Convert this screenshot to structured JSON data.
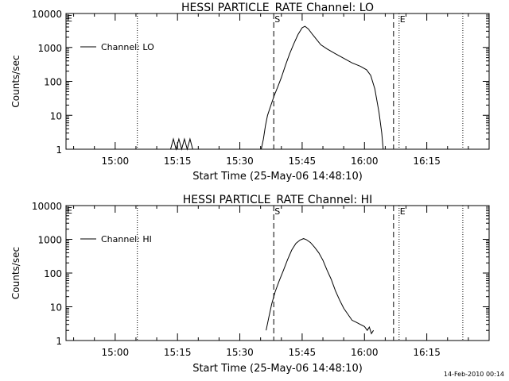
{
  "chart_data": [
    {
      "type": "line",
      "title": "HESSI PARTICLE_RATE Channel: LO",
      "xlabel": "Start Time (25-May-06 14:48:10)",
      "ylabel": "Counts/sec",
      "xlim": [
        "14:48:10",
        "16:30:00"
      ],
      "ylim": [
        1,
        10000
      ],
      "y_scale": "log",
      "x_ticks": [
        "15:00",
        "15:15",
        "15:30",
        "15:45",
        "16:00",
        "16:15"
      ],
      "y_ticks": [
        "1",
        "10",
        "100",
        "1000",
        "10000"
      ],
      "legend": {
        "position": "top-left",
        "entries": [
          "Channel: LO"
        ]
      },
      "vlines": [
        {
          "x": "15:05:20",
          "style": "dotted",
          "label": ""
        },
        {
          "x": "15:38:10",
          "style": "dashed",
          "label": "S"
        },
        {
          "x": "16:07:00",
          "style": "dashed",
          "label": ""
        },
        {
          "x": "16:08:20",
          "style": "dotted",
          "label": "E"
        },
        {
          "x": "16:23:40",
          "style": "dotted",
          "label": ""
        }
      ],
      "corner_mark": "E",
      "series": [
        {
          "name": "Channel: LO",
          "x": [
            "15:13:20",
            "15:14:00",
            "15:14:40",
            "15:15:20",
            "15:16:00",
            "15:16:40",
            "15:17:20",
            "15:18:00",
            "15:18:40",
            "15:35:10",
            "15:35:40",
            "15:36:10",
            "15:36:40",
            "15:37:30",
            "15:38:20",
            "15:39:10",
            "15:40:00",
            "15:41:00",
            "15:42:00",
            "15:43:00",
            "15:44:00",
            "15:45:00",
            "15:45:40",
            "15:46:30",
            "15:47:30",
            "15:48:30",
            "15:49:30",
            "15:51:00",
            "15:53:00",
            "15:55:00",
            "15:57:00",
            "15:59:00",
            "16:00:30",
            "16:01:30",
            "16:02:30",
            "16:03:30",
            "16:04:10",
            "16:04:30"
          ],
          "y": [
            1,
            2,
            1,
            2,
            1,
            2,
            1,
            2,
            1,
            1,
            2,
            5,
            10,
            20,
            40,
            70,
            130,
            300,
            650,
            1300,
            2400,
            3800,
            4200,
            3500,
            2400,
            1700,
            1200,
            900,
            650,
            480,
            350,
            280,
            220,
            150,
            60,
            12,
            3,
            1
          ]
        }
      ]
    },
    {
      "type": "line",
      "title": "HESSI PARTICLE_RATE Channel: HI",
      "xlabel": "Start Time (25-May-06 14:48:10)",
      "ylabel": "Counts/sec",
      "xlim": [
        "14:48:10",
        "16:30:00"
      ],
      "ylim": [
        1,
        10000
      ],
      "y_scale": "log",
      "x_ticks": [
        "15:00",
        "15:15",
        "15:30",
        "15:45",
        "16:00",
        "16:15"
      ],
      "y_ticks": [
        "1",
        "10",
        "100",
        "1000",
        "10000"
      ],
      "legend": {
        "position": "top-left",
        "entries": [
          "Channel: HI"
        ]
      },
      "vlines": [
        {
          "x": "15:05:20",
          "style": "dotted",
          "label": ""
        },
        {
          "x": "15:38:10",
          "style": "dashed",
          "label": "S"
        },
        {
          "x": "16:07:00",
          "style": "dashed",
          "label": ""
        },
        {
          "x": "16:08:20",
          "style": "dotted",
          "label": "E"
        },
        {
          "x": "16:23:40",
          "style": "dotted",
          "label": ""
        }
      ],
      "corner_mark": "E",
      "series": [
        {
          "name": "Channel: HI",
          "x": [
            "15:36:20",
            "15:37:00",
            "15:37:40",
            "15:38:30",
            "15:39:30",
            "15:40:30",
            "15:41:30",
            "15:42:30",
            "15:43:30",
            "15:44:30",
            "15:45:20",
            "15:46:00",
            "15:47:00",
            "15:48:00",
            "15:49:00",
            "15:50:00",
            "15:51:00",
            "15:52:00",
            "15:53:00",
            "15:54:00",
            "15:55:00",
            "15:56:00",
            "15:57:00",
            "15:58:00",
            "15:59:00",
            "16:00:00",
            "16:00:40",
            "16:01:10",
            "16:01:40",
            "16:02:10"
          ],
          "y": [
            2,
            5,
            12,
            28,
            60,
            120,
            250,
            480,
            760,
            950,
            1050,
            980,
            800,
            580,
            400,
            240,
            120,
            65,
            30,
            16,
            9,
            6,
            4,
            3.5,
            3,
            2.6,
            2,
            2.5,
            1.6,
            2
          ]
        }
      ]
    }
  ],
  "footer": {
    "date": "14-Feb-2010 00:14"
  }
}
